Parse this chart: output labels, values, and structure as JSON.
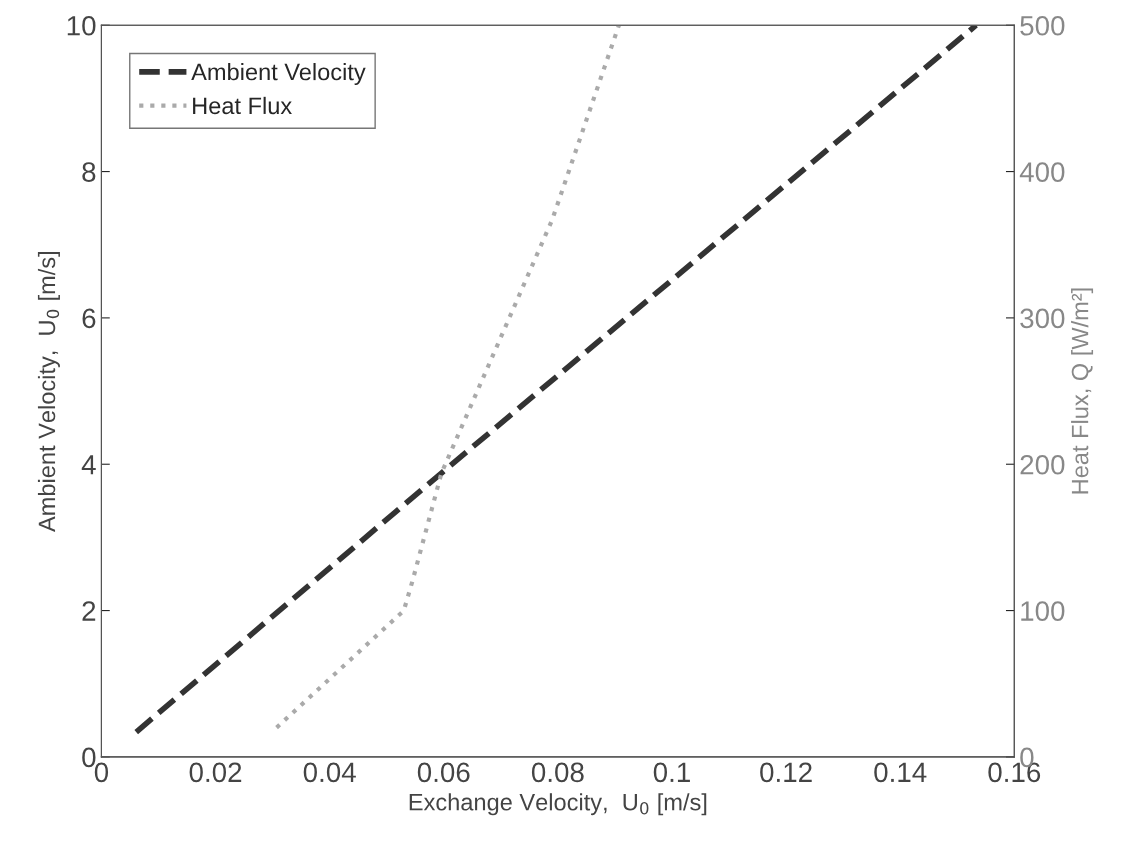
{
  "chart_data": {
    "type": "line",
    "xlabel": "Exchange Velocity,  U$_{0}$ [m/s]",
    "ylabel": "Ambient Velocity,  U$_{0}$ [m/s]",
    "y2label": "Heat Flux, Q [W/m²]",
    "xlim": [
      0,
      0.16
    ],
    "xticks": [
      0,
      0.02,
      0.04,
      0.06,
      0.08,
      0.1,
      0.12,
      0.14,
      0.16
    ],
    "ylim": [
      0,
      10
    ],
    "yticks": [
      0,
      2,
      4,
      6,
      8,
      10
    ],
    "y2lim": [
      0,
      500
    ],
    "y2ticks": [
      0,
      100,
      200,
      300,
      400,
      500
    ],
    "grid": false,
    "legend": "top left",
    "series": [
      {
        "name": "Ambient Velocity",
        "color": "#333333",
        "line_style": "dashed",
        "x": [
          0.0061,
          0.0596,
          0.1533
        ],
        "values": [
          0.34,
          3.88,
          10
        ]
      },
      {
        "name": "Heat Flux",
        "color": "#aaaaaa",
        "line_style": "dotted",
        "axis": "y2",
        "x": [
          0.0307,
          0.053,
          0.0545,
          0.0596,
          0.079,
          0.0907
        ],
        "values": [
          20,
          100,
          120,
          194,
          367,
          500
        ]
      }
    ]
  }
}
